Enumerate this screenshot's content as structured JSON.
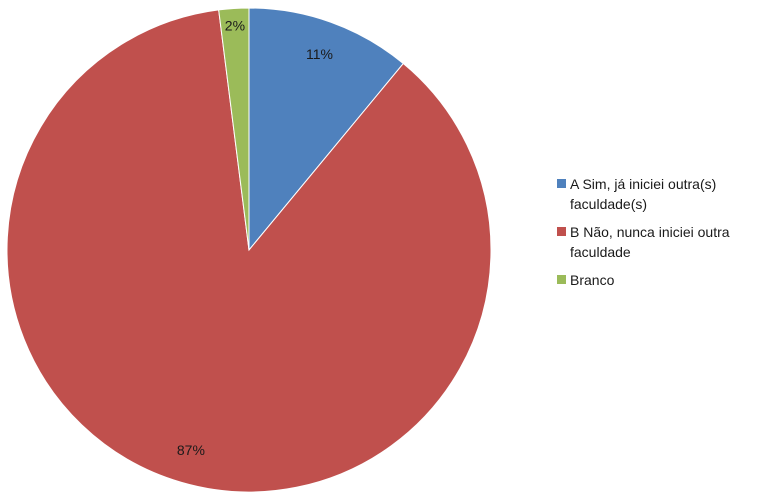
{
  "chart_data": {
    "type": "pie",
    "title": "",
    "slices": [
      {
        "label": "A Sim, já iniciei outra(s) faculdade(s)",
        "value": 11,
        "data_label": "11%",
        "color": "#4f81bd"
      },
      {
        "label": "B Não, nunca iniciei outra faculdade",
        "value": 87,
        "data_label": "87%",
        "color": "#c0504d"
      },
      {
        "label": "Branco",
        "value": 2,
        "data_label": "2%",
        "color": "#9bbb59"
      }
    ],
    "start_angle_deg": 0,
    "direction": "clockwise",
    "legend_position": "right"
  }
}
